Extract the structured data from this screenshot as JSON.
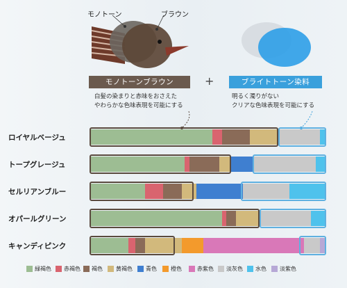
{
  "illustration": {
    "label_mono": "モノトーン",
    "label_brown": "ブラウン"
  },
  "lens_left": {
    "title": "モノトーンブラウン",
    "lines": [
      "白髪の染まりと赤味をおさえた",
      "やわらかな色味表現を可能にする"
    ],
    "color": "#6b5a4e"
  },
  "plus": "+",
  "lens_right": {
    "title": "ブライトトーン染料",
    "lines": [
      "明るく濁りがない",
      "クリアな色味表現を可能にする"
    ],
    "color": "#3aa0dc"
  },
  "colors": {
    "green_brown": "#9dbd93",
    "red_brown": "#d9646f",
    "brown": "#8a6b58",
    "yellow_brown": "#d2b97c",
    "blue": "#3f7fd0",
    "orange": "#f39a2c",
    "red_purple": "#d978b8",
    "light_gray": "#c9c9c9",
    "aqua": "#4fc2ec",
    "light_purple": "#b7a8d6"
  },
  "legend": [
    {
      "label": "緑褐色",
      "color": "#9dbd93"
    },
    {
      "label": "赤褐色",
      "color": "#d9646f"
    },
    {
      "label": "褐色",
      "color": "#8a6b58"
    },
    {
      "label": "黄褐色",
      "color": "#d2b97c"
    },
    {
      "label": "青色",
      "color": "#3f7fd0"
    },
    {
      "label": "橙色",
      "color": "#f39a2c"
    },
    {
      "label": "赤紫色",
      "color": "#d978b8"
    },
    {
      "label": "淡灰色",
      "color": "#c9c9c9"
    },
    {
      "label": "水色",
      "color": "#4fc2ec"
    },
    {
      "label": "淡紫色",
      "color": "#b7a8d6"
    }
  ],
  "rows": [
    {
      "label": "ロイヤルベージュ",
      "segments": [
        {
          "color": "green_brown",
          "share": 0.52
        },
        {
          "color": "red_brown",
          "share": 0.04
        },
        {
          "color": "brown",
          "share": 0.12
        },
        {
          "color": "yellow_brown",
          "share": 0.12
        },
        {
          "color": "light_gray",
          "share": 0.18
        },
        {
          "color": "aqua",
          "share": 0.02
        }
      ],
      "brown_frame": [
        0,
        0.8
      ],
      "blue_frame": [
        0.8,
        1.0
      ]
    },
    {
      "label": "トープグレージュ",
      "segments": [
        {
          "color": "green_brown",
          "share": 0.4
        },
        {
          "color": "red_brown",
          "share": 0.02
        },
        {
          "color": "brown",
          "share": 0.13
        },
        {
          "color": "yellow_brown",
          "share": 0.05
        },
        {
          "color": "blue",
          "share": 0.09
        },
        {
          "color": "light_gray",
          "share": 0.27
        },
        {
          "color": "aqua",
          "share": 0.04
        }
      ],
      "brown_frame": [
        0,
        0.6
      ],
      "blue_frame": [
        0.69,
        1.0
      ]
    },
    {
      "label": "セルリアンブルー",
      "segments": [
        {
          "color": "green_brown",
          "share": 0.23
        },
        {
          "color": "red_brown",
          "share": 0.08
        },
        {
          "color": "brown",
          "share": 0.08
        },
        {
          "color": "yellow_brown",
          "share": 0.06
        },
        {
          "color": "blue",
          "share": 0.2
        },
        {
          "color": "light_gray",
          "share": 0.2
        },
        {
          "color": "aqua",
          "share": 0.15
        }
      ],
      "brown_frame": [
        0,
        0.44
      ],
      "blue_frame": [
        0.64,
        1.0
      ]
    },
    {
      "label": "オパールグリーン",
      "segments": [
        {
          "color": "green_brown",
          "share": 0.56
        },
        {
          "color": "red_brown",
          "share": 0.02
        },
        {
          "color": "brown",
          "share": 0.04
        },
        {
          "color": "yellow_brown",
          "share": 0.1
        },
        {
          "color": "light_gray",
          "share": 0.22
        },
        {
          "color": "aqua",
          "share": 0.06
        }
      ],
      "brown_frame": [
        0,
        0.72
      ],
      "blue_frame": [
        0.72,
        1.0
      ]
    },
    {
      "label": "キャンディピンク",
      "segments": [
        {
          "color": "green_brown",
          "share": 0.16
        },
        {
          "color": "red_brown",
          "share": 0.03
        },
        {
          "color": "brown",
          "share": 0.04
        },
        {
          "color": "yellow_brown",
          "share": 0.16
        },
        {
          "color": "orange",
          "share": 0.09
        },
        {
          "color": "red_purple",
          "share": 0.43
        },
        {
          "color": "light_gray",
          "share": 0.07
        },
        {
          "color": "light_purple",
          "share": 0.02
        }
      ],
      "brown_frame": [
        0,
        0.36
      ],
      "blue_frame": [
        0.89,
        1.0
      ]
    }
  ]
}
